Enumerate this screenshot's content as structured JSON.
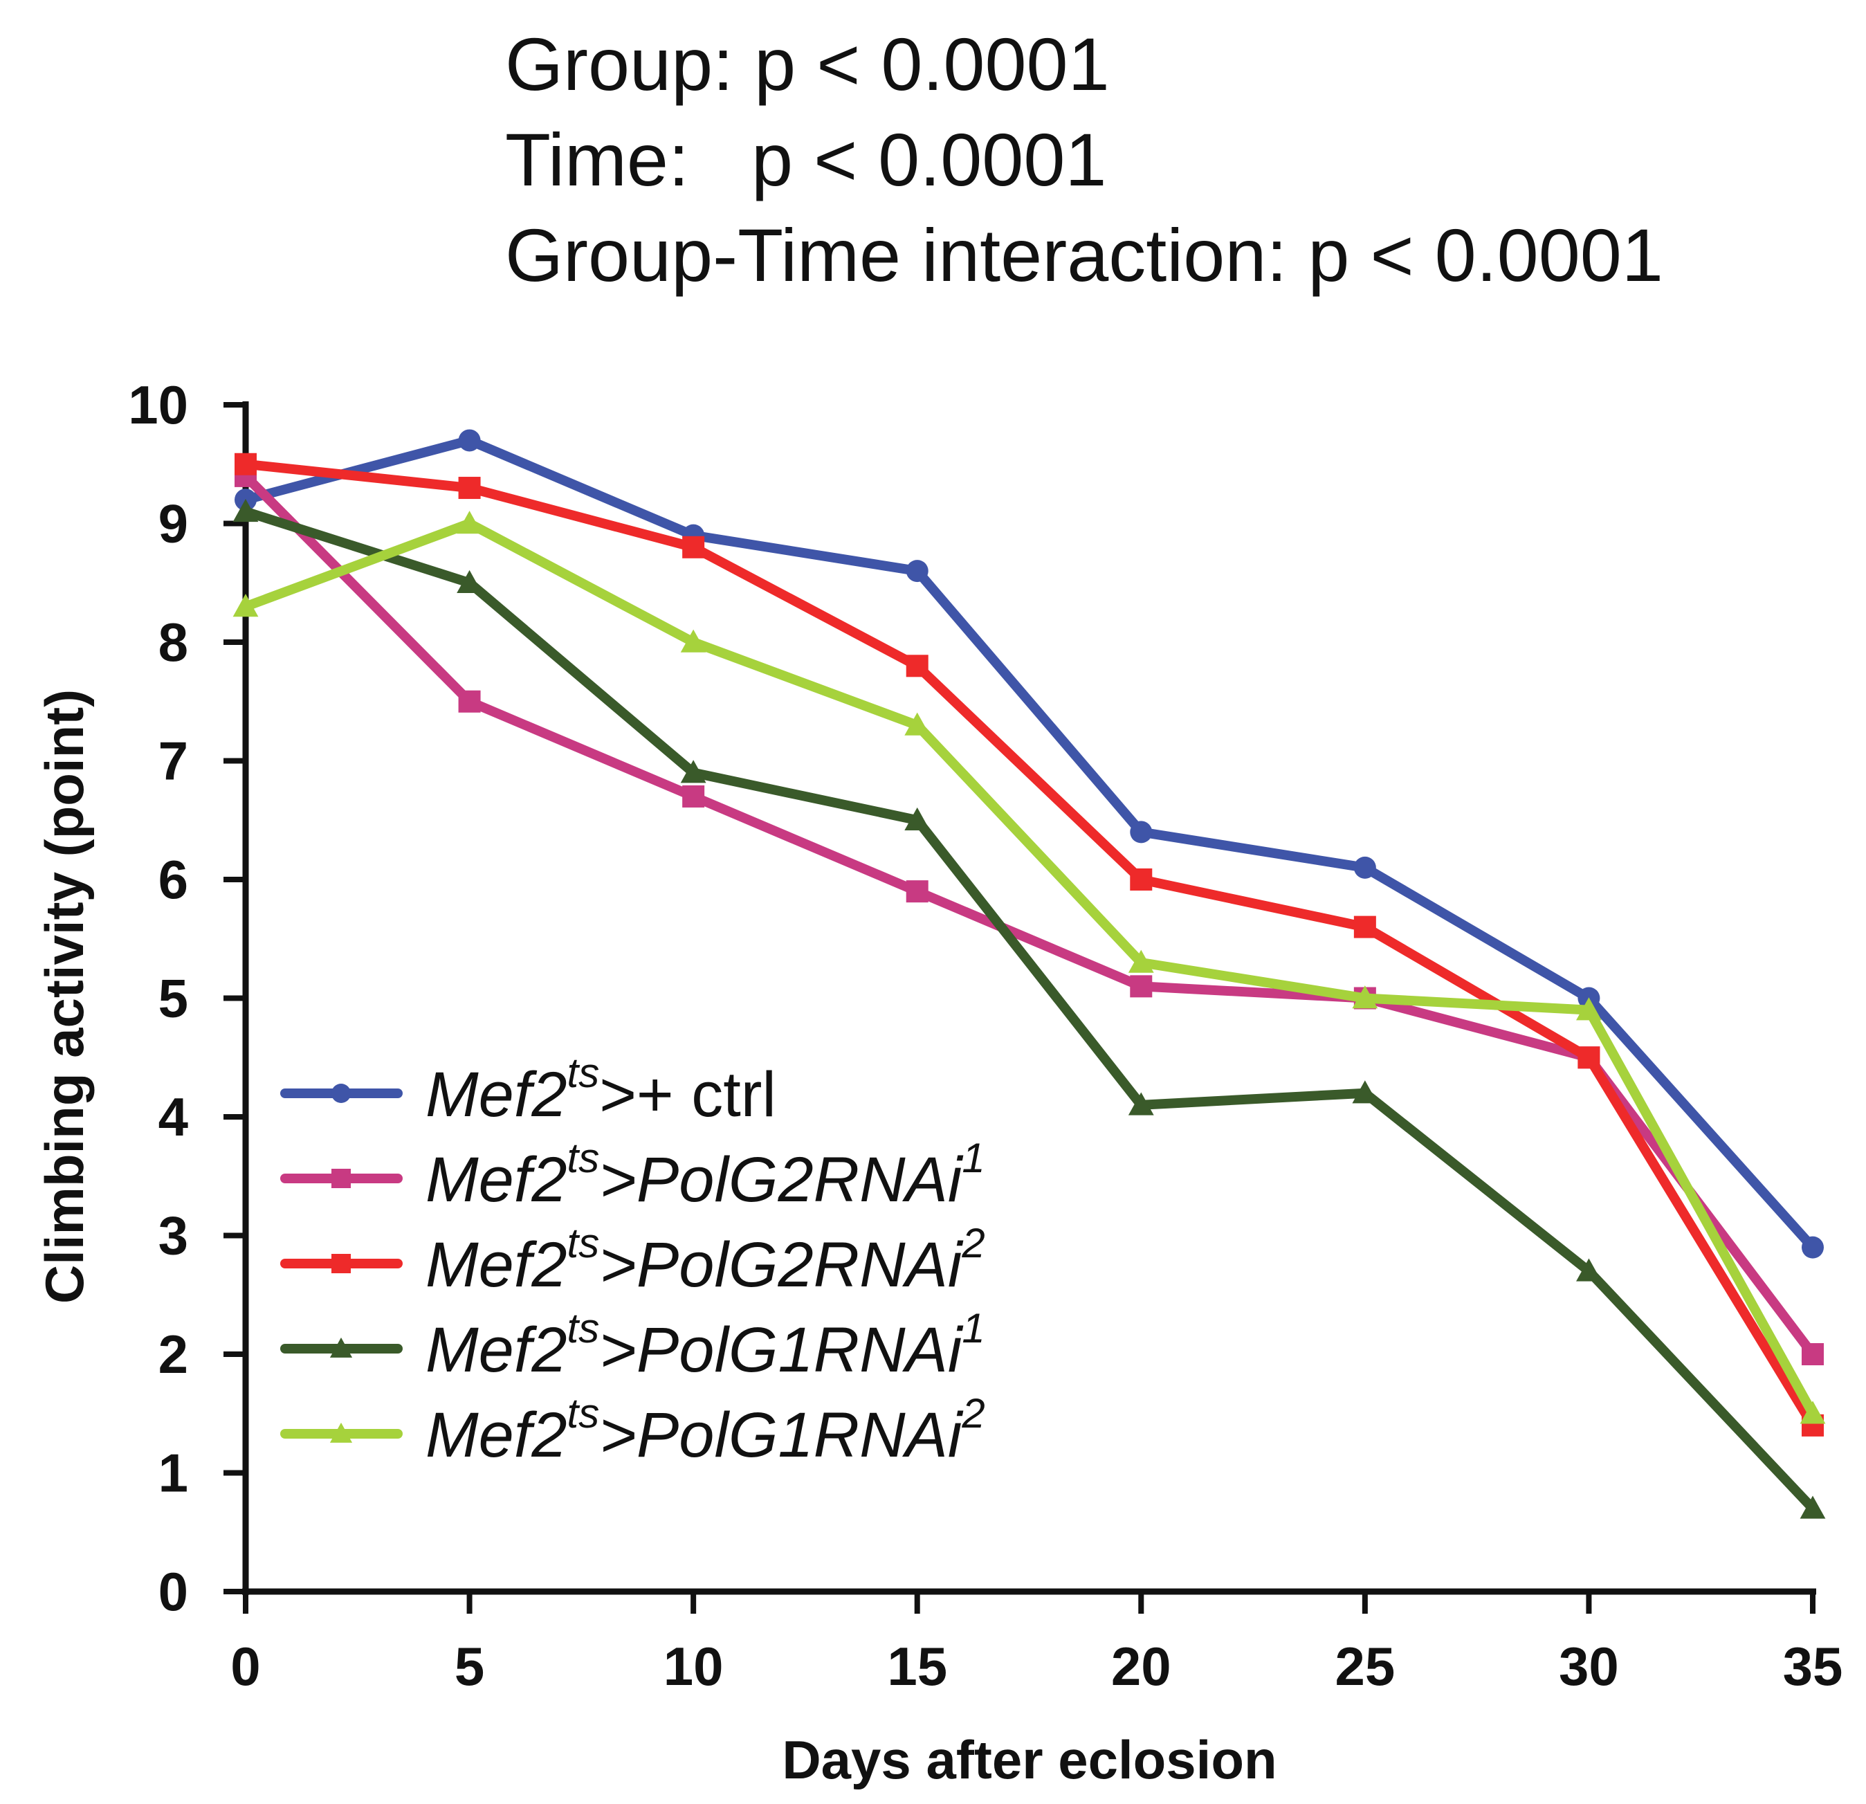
{
  "chart_data": {
    "type": "line",
    "annotations": [
      "Group: p < 0.0001",
      "Time:   p < 0.0001",
      "Group-Time interaction: p < 0.0001"
    ],
    "xlabel": "Days after eclosion",
    "ylabel": "Climbing activity (point)",
    "x": [
      0,
      5,
      10,
      15,
      20,
      25,
      30,
      35
    ],
    "xlim": [
      0,
      35
    ],
    "ylim": [
      0,
      10
    ],
    "xticks": [
      "0",
      "5",
      "10",
      "15",
      "20",
      "25",
      "30",
      "35"
    ],
    "yticks": [
      "0",
      "1",
      "2",
      "3",
      "4",
      "5",
      "6",
      "7",
      "8",
      "9",
      "10"
    ],
    "grid": false,
    "legend_position": "bottom-left",
    "series": [
      {
        "name": "Mef2ts>+ ctrl",
        "label_main": "Mef2",
        "label_sup": "ts",
        "label_rest": ">+ ctrl",
        "label_sup2": "",
        "color": "#3f55a8",
        "marker": "circle",
        "values": [
          9.2,
          9.7,
          8.9,
          8.6,
          6.4,
          6.1,
          5.0,
          2.9
        ]
      },
      {
        "name": "Mef2ts>PolG2RNAi1",
        "label_main": "Mef2",
        "label_sup": "ts",
        "label_rest": ">PolG2RNAi",
        "label_sup2": "1",
        "color": "#c83a82",
        "marker": "square",
        "values": [
          9.4,
          7.5,
          6.7,
          5.9,
          5.1,
          5.0,
          4.5,
          2.0
        ]
      },
      {
        "name": "Mef2ts>PolG2RNAi2",
        "label_main": "Mef2",
        "label_sup": "ts",
        "label_rest": ">PolG2RNAi",
        "label_sup2": "2",
        "color": "#ee2a2a",
        "marker": "square",
        "values": [
          9.5,
          9.3,
          8.8,
          7.8,
          6.0,
          5.6,
          4.5,
          1.4
        ]
      },
      {
        "name": "Mef2ts>PolG1RNAi1",
        "label_main": "Mef2",
        "label_sup": "ts",
        "label_rest": ">PolG1RNAi",
        "label_sup2": "1",
        "color": "#3a5a2a",
        "marker": "triangle",
        "values": [
          9.1,
          8.5,
          6.9,
          6.5,
          4.1,
          4.2,
          2.7,
          0.7
        ]
      },
      {
        "name": "Mef2ts>PolG1RNAi2",
        "label_main": "Mef2",
        "label_sup": "ts",
        "label_rest": ">PolG1RNAi",
        "label_sup2": "2",
        "color": "#a6d23c",
        "marker": "triangle",
        "values": [
          8.3,
          9.0,
          8.0,
          7.3,
          5.3,
          5.0,
          4.9,
          1.5
        ]
      }
    ]
  }
}
